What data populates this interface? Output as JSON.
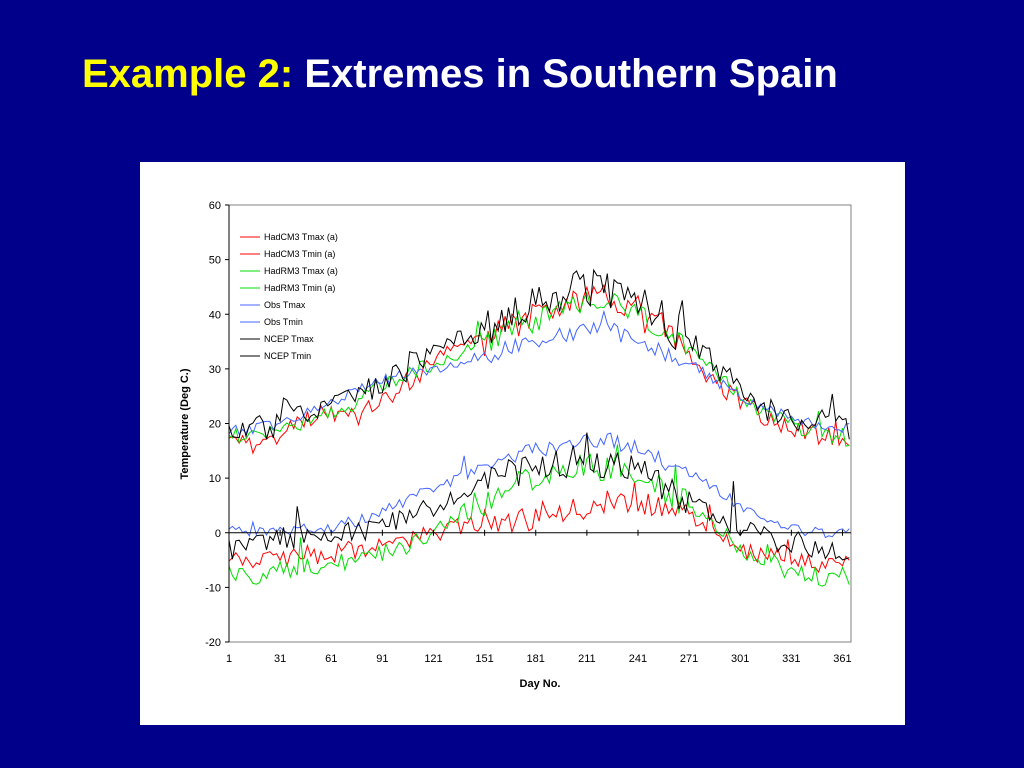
{
  "slide": {
    "title_prefix": "Example 2:",
    "title_rest": "Extremes in Southern Spain"
  },
  "chart_data": {
    "type": "line",
    "xlabel": "Day No.",
    "ylabel": "Temperature (Deg C.)",
    "xlim": [
      1,
      366
    ],
    "ylim": [
      -20,
      60
    ],
    "y_ticks": [
      60,
      50,
      40,
      30,
      20,
      10,
      0,
      -10,
      -20
    ],
    "x_ticks": [
      1,
      31,
      61,
      91,
      121,
      151,
      181,
      211,
      241,
      271,
      301,
      331,
      361
    ],
    "legend_position": "top-left",
    "grid": false,
    "x": [
      1,
      16,
      31,
      46,
      61,
      76,
      91,
      106,
      121,
      136,
      151,
      166,
      181,
      196,
      211,
      226,
      241,
      256,
      271,
      286,
      301,
      316,
      331,
      346,
      361
    ],
    "series": [
      {
        "name": "HadCM3 Tmax (a)",
        "color": "#ff0000",
        "amp": 1.8,
        "values": [
          16,
          16,
          18,
          21,
          22,
          21,
          24,
          27,
          32,
          34,
          35,
          38,
          40,
          42,
          43,
          43,
          40,
          37,
          32,
          28,
          24,
          21,
          19,
          18,
          17
        ]
      },
      {
        "name": "HadCM3 Tmin (a)",
        "color": "#ff0000",
        "amp": 1.8,
        "values": [
          -4,
          -5,
          -5,
          -4,
          -4,
          -3,
          -2,
          -1,
          0,
          1,
          2,
          2,
          3,
          4,
          5,
          7,
          6,
          5,
          3,
          0,
          -3,
          -4,
          -5,
          -6,
          -6
        ]
      },
      {
        "name": "HadRM3 Tmax (a)",
        "color": "#00dd00",
        "amp": 1.5,
        "values": [
          18,
          18,
          19,
          20,
          22,
          24,
          27,
          29,
          31,
          33,
          35,
          37,
          39,
          41,
          42,
          42,
          40,
          37,
          33,
          29,
          25,
          22,
          20,
          18,
          17
        ]
      },
      {
        "name": "HadRM3 Tmin (a)",
        "color": "#00dd00",
        "amp": 1.8,
        "values": [
          -7,
          -8,
          -7,
          -6,
          -6,
          -5,
          -4,
          -2,
          0,
          3,
          5,
          8,
          10,
          11,
          12,
          12,
          11,
          8,
          5,
          1,
          -3,
          -5,
          -7,
          -8,
          -8
        ]
      },
      {
        "name": "Obs  Tmax",
        "color": "#4466ff",
        "amp": 1.0,
        "values": [
          19,
          19,
          20,
          22,
          24,
          26,
          28,
          29,
          30,
          31,
          32,
          34,
          35,
          36,
          37,
          37,
          35,
          33,
          31,
          28,
          25,
          23,
          21,
          20,
          19
        ]
      },
      {
        "name": "Obs  Tmin",
        "color": "#4466ff",
        "amp": 1.0,
        "values": [
          1,
          0,
          0,
          1,
          1,
          2,
          4,
          6,
          8,
          10,
          12,
          14,
          15,
          16,
          17,
          17,
          15,
          13,
          11,
          8,
          5,
          3,
          1,
          0,
          0
        ]
      },
      {
        "name": "NCEP Tmax",
        "color": "#000000",
        "amp": 2.4,
        "values": [
          19,
          19,
          20,
          22,
          23,
          25,
          27,
          30,
          33,
          35,
          37,
          40,
          43,
          44,
          45,
          44,
          42,
          39,
          35,
          31,
          27,
          23,
          21,
          20,
          19
        ]
      },
      {
        "name": "NCEP Tmin",
        "color": "#000000",
        "amp": 2.0,
        "values": [
          -3,
          -2,
          -1,
          -1,
          0,
          0,
          1,
          3,
          5,
          7,
          9,
          11,
          12,
          13,
          13,
          12,
          11,
          9,
          6,
          3,
          1,
          -1,
          -2,
          -3,
          -4
        ]
      }
    ]
  }
}
